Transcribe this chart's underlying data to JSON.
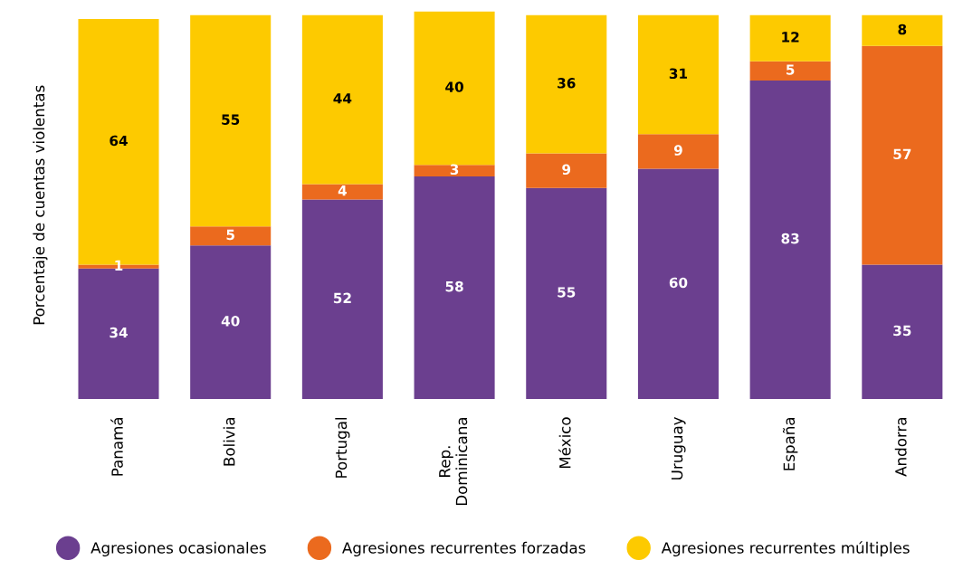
{
  "chart_data": {
    "type": "bar",
    "stacked": true,
    "ylabel": "Porcentaje de cuentas violentas",
    "categories": [
      "Panamá",
      "Bolivia",
      "Portugal",
      "Rep.\nDominicana",
      "México",
      "Uruguay",
      "España",
      "Andorra"
    ],
    "series": [
      {
        "name": "Agresiones ocasionales",
        "color": "#6b3f8f",
        "values": [
          34,
          40,
          52,
          58,
          55,
          60,
          83,
          35
        ]
      },
      {
        "name": "Agresiones recurrentes forzadas",
        "color": "#eb6a1e",
        "values": [
          1,
          5,
          4,
          3,
          9,
          9,
          5,
          57
        ]
      },
      {
        "name": "Agresiones recurrentes múltiples",
        "color": "#fdca00",
        "values": [
          64,
          55,
          44,
          40,
          36,
          31,
          12,
          8
        ]
      }
    ],
    "data_labels": true,
    "legend": "bottom",
    "grid": false,
    "tick_labels": "x"
  }
}
